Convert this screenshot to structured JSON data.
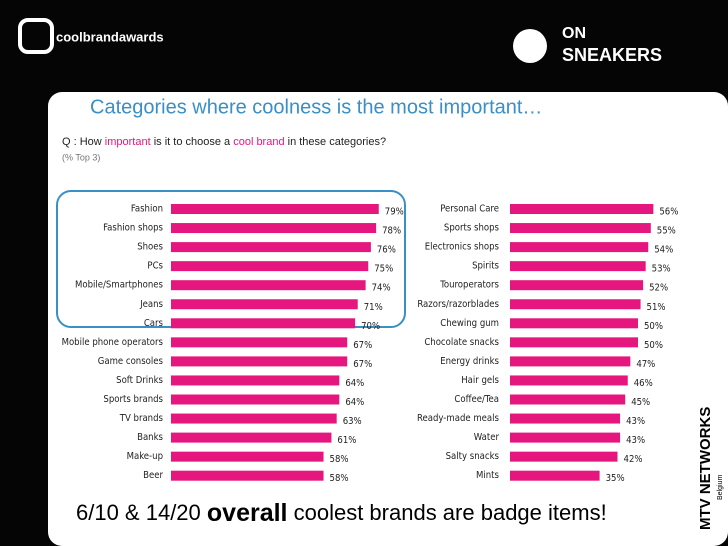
{
  "slide": {
    "logo_left": "coolbrandawards",
    "logo_right_top": "ON",
    "logo_right_bottom": "SNEAKERS",
    "logo_bottom": "MTV NETWORKS",
    "logo_bottom_sub": "Belgium",
    "title": "Categories where coolness is the most important…",
    "question": [
      "Q : How ",
      "important",
      " is it to choose a ",
      "cool brand",
      " in these categories?"
    ],
    "note": "(% Top 3)",
    "footer": [
      "6/10 & 14/20 ",
      "overall",
      " coolest brands are badge items!"
    ]
  },
  "chart_data": [
    {
      "type": "bar",
      "orientation": "horizontal",
      "color": "#e5177e",
      "categories": [
        "Fashion",
        "Fashion shops",
        "Shoes",
        "PCs",
        "Mobile/Smartphones",
        "Jeans",
        "Cars",
        "Mobile phone operators",
        "Game consoles",
        "Soft Drinks",
        "Sports brands",
        "TV brands",
        "Banks",
        "Make-up",
        "Beer"
      ],
      "values": [
        79,
        78,
        76,
        75,
        74,
        71,
        70,
        67,
        67,
        64,
        64,
        63,
        61,
        58,
        58
      ],
      "value_labels": [
        "79%",
        "78%",
        "76%",
        "75%",
        "74%",
        "71%",
        "70%",
        "67%",
        "67%",
        "64%",
        "64%",
        "63%",
        "61%",
        "58%",
        "58%"
      ]
    },
    {
      "type": "bar",
      "orientation": "horizontal",
      "color": "#e5177e",
      "categories": [
        "Personal Care",
        "Sports shops",
        "Electronics shops",
        "Spirits",
        "Touroperators",
        "Razors/razorblades",
        "Chewing gum",
        "Chocolate snacks",
        "Energy drinks",
        "Hair gels",
        "Coffee/Tea",
        "Ready-made meals",
        "Water",
        "Salty snacks",
        "Mints"
      ],
      "values": [
        56,
        55,
        54,
        53,
        52,
        51,
        50,
        50,
        47,
        46,
        45,
        43,
        43,
        42,
        35
      ],
      "value_labels": [
        "56%",
        "55%",
        "54%",
        "53%",
        "52%",
        "51%",
        "50%",
        "50%",
        "47%",
        "46%",
        "45%",
        "43%",
        "43%",
        "42%",
        "35%"
      ]
    }
  ]
}
